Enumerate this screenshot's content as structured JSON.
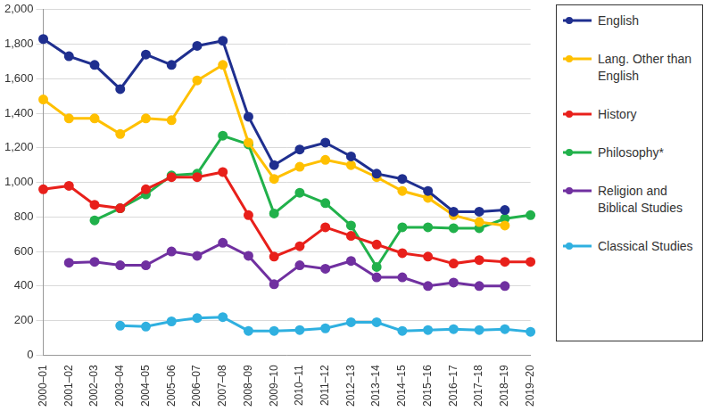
{
  "chart_data": {
    "type": "line",
    "categories": [
      "2000–01",
      "2001–02",
      "2002–03",
      "2003–04",
      "2004–05",
      "2005–06",
      "2006–07",
      "2007–08",
      "2008–09",
      "2009–10",
      "2010–11",
      "2011–12",
      "2012–13",
      "2013–14",
      "2014–15",
      "2015–16",
      "2016–17",
      "2017–18",
      "2018–19",
      "2019–20"
    ],
    "ylim": [
      0,
      2000
    ],
    "yticks": [
      0,
      200,
      400,
      600,
      800,
      {
        "value": 1000,
        "label": "1,000"
      },
      {
        "value": 1200,
        "label": "1,200"
      },
      {
        "value": 1400,
        "label": "1,400"
      },
      {
        "value": 1600,
        "label": "1,600"
      },
      {
        "value": 1800,
        "label": "1,800"
      },
      {
        "value": 2000,
        "label": "2,000"
      }
    ],
    "grid": true,
    "legend": "right",
    "marker": "circle",
    "line_style": "solid",
    "series": [
      {
        "name": "English",
        "color": "#1f2f8f",
        "values": [
          1830,
          1730,
          1680,
          1540,
          1740,
          1680,
          1790,
          1820,
          1380,
          1100,
          1190,
          1230,
          1150,
          1050,
          1020,
          950,
          830,
          830,
          840,
          null
        ]
      },
      {
        "name": "Lang. Other than English",
        "color": "#ffc000",
        "values": [
          1480,
          1370,
          1370,
          1280,
          1370,
          1360,
          1590,
          1680,
          1230,
          1020,
          1090,
          1130,
          1100,
          1030,
          950,
          910,
          810,
          770,
          750,
          null
        ]
      },
      {
        "name": "History",
        "color": "#e8201b",
        "values": [
          960,
          980,
          870,
          850,
          960,
          1030,
          1030,
          1060,
          810,
          570,
          630,
          740,
          690,
          640,
          590,
          570,
          530,
          550,
          540,
          540
        ]
      },
      {
        "name": "Philosophy*",
        "color": "#21b14b",
        "values": [
          null,
          null,
          780,
          850,
          930,
          1040,
          1050,
          1270,
          1220,
          820,
          940,
          880,
          750,
          510,
          740,
          740,
          735,
          735,
          790,
          810
        ]
      },
      {
        "name": "Religion and Biblical Studies",
        "color": "#7030a0",
        "values": [
          null,
          535,
          540,
          520,
          520,
          600,
          575,
          650,
          575,
          410,
          520,
          500,
          545,
          450,
          450,
          400,
          420,
          400,
          400,
          null
        ]
      },
      {
        "name": "Classical Studies",
        "color": "#2fb0e0",
        "values": [
          null,
          null,
          null,
          170,
          165,
          195,
          215,
          220,
          140,
          140,
          145,
          155,
          190,
          190,
          140,
          145,
          150,
          145,
          150,
          135
        ]
      }
    ]
  }
}
